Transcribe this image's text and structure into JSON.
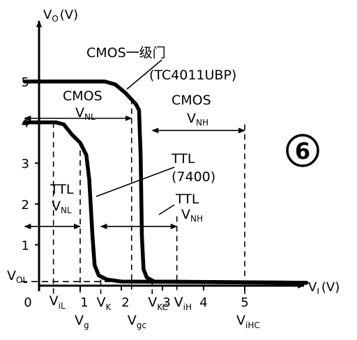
{
  "chart_data": {
    "type": "line",
    "xlabel": "V",
    "xlabel_sub": "I",
    "xlabel_unit": "(V)",
    "ylabel": "V",
    "ylabel_sub": "O",
    "ylabel_unit": "(V)",
    "xlim": [
      0,
      6.5
    ],
    "ylim": [
      0,
      5.7
    ],
    "x_ticks": [
      {
        "v": 0,
        "label": "0"
      },
      {
        "v": 1,
        "label": "1"
      },
      {
        "v": 2,
        "label": "2"
      },
      {
        "v": 3,
        "label": "3"
      },
      {
        "v": 4,
        "label": "4"
      },
      {
        "v": 5,
        "label": "5"
      }
    ],
    "y_ticks": [
      {
        "v": 1,
        "label": "1"
      },
      {
        "v": 2,
        "label": "2"
      },
      {
        "v": 3,
        "label": "3"
      },
      {
        "v": 4,
        "label": "4"
      },
      {
        "v": 5,
        "label": "5"
      }
    ],
    "vol": {
      "main": "V",
      "sub": "OL",
      "value": 0.1
    },
    "series": [
      {
        "name": "CMOS",
        "points": [
          [
            -0.35,
            5.0
          ],
          [
            1.6,
            5.0
          ],
          [
            1.85,
            4.93
          ],
          [
            2.1,
            4.72
          ],
          [
            2.35,
            4.45
          ],
          [
            2.43,
            4.3
          ],
          [
            2.47,
            3.2
          ],
          [
            2.5,
            1.2
          ],
          [
            2.54,
            0.4
          ],
          [
            2.62,
            0.2
          ],
          [
            2.8,
            0.1
          ],
          [
            6.5,
            0.07
          ]
        ]
      },
      {
        "name": "TTL",
        "points": [
          [
            -0.35,
            4.0
          ],
          [
            0.4,
            4.0
          ],
          [
            0.6,
            3.95
          ],
          [
            0.8,
            3.7
          ],
          [
            1.0,
            3.5
          ],
          [
            1.15,
            3.2
          ],
          [
            1.22,
            2.6
          ],
          [
            1.3,
            1.2
          ],
          [
            1.35,
            0.5
          ],
          [
            1.45,
            0.25
          ],
          [
            1.65,
            0.15
          ],
          [
            2.0,
            0.1
          ],
          [
            6.5,
            0.07
          ]
        ]
      }
    ],
    "vlines": [
      {
        "x": 0.35,
        "ytop": 4.0,
        "label": "V",
        "sub": "iL"
      },
      {
        "x": 1.0,
        "ytop": 3.55,
        "label": "V",
        "sub": "g"
      },
      {
        "x": 1.5,
        "ytop": 0.15,
        "label": "V",
        "sub": "K"
      },
      {
        "x": 2.25,
        "ytop": 4.58,
        "label": "V",
        "sub": "gc"
      },
      {
        "x": 2.75,
        "ytop": 0.15,
        "label": "V",
        "sub": "KC"
      },
      {
        "x": 3.35,
        "ytop": 1.7,
        "label": "V",
        "sub": "iH"
      },
      {
        "x": 5.0,
        "ytop": 3.95,
        "label": "V",
        "sub": "iHC"
      }
    ],
    "ranges": [
      {
        "name": "cmos-vnl",
        "x1": -0.35,
        "x2": 2.25,
        "y": 4.1
      },
      {
        "name": "cmos-vnh",
        "x1": 2.75,
        "x2": 5.0,
        "y": 3.8
      },
      {
        "name": "ttl-vnl",
        "x1": -0.35,
        "x2": 1.0,
        "y": 1.45
      },
      {
        "name": "ttl-vnh",
        "x1": 1.5,
        "x2": 3.35,
        "y": 1.45
      }
    ],
    "annotations": {
      "cmos_gate_line1": "CMOS一级门",
      "cmos_gate_line2": "(TC4011UBP)",
      "cmos_vnl_title": "CMOS",
      "cmos_vnl_label": "V",
      "cmos_vnl_sub": "NL",
      "cmos_vnh_title": "CMOS",
      "cmos_vnh_label": "V",
      "cmos_vnh_sub": "NH",
      "ttl_right_title": "TTL",
      "ttl_right_model": "(7400)",
      "ttl_vnh_title": "TTL",
      "ttl_vnh_label": "V",
      "ttl_vnh_sub": "NH",
      "ttl_vnl_title": "TTL",
      "ttl_vnl_label": "V",
      "ttl_vnl_sub": "NL",
      "badge": "6"
    }
  }
}
